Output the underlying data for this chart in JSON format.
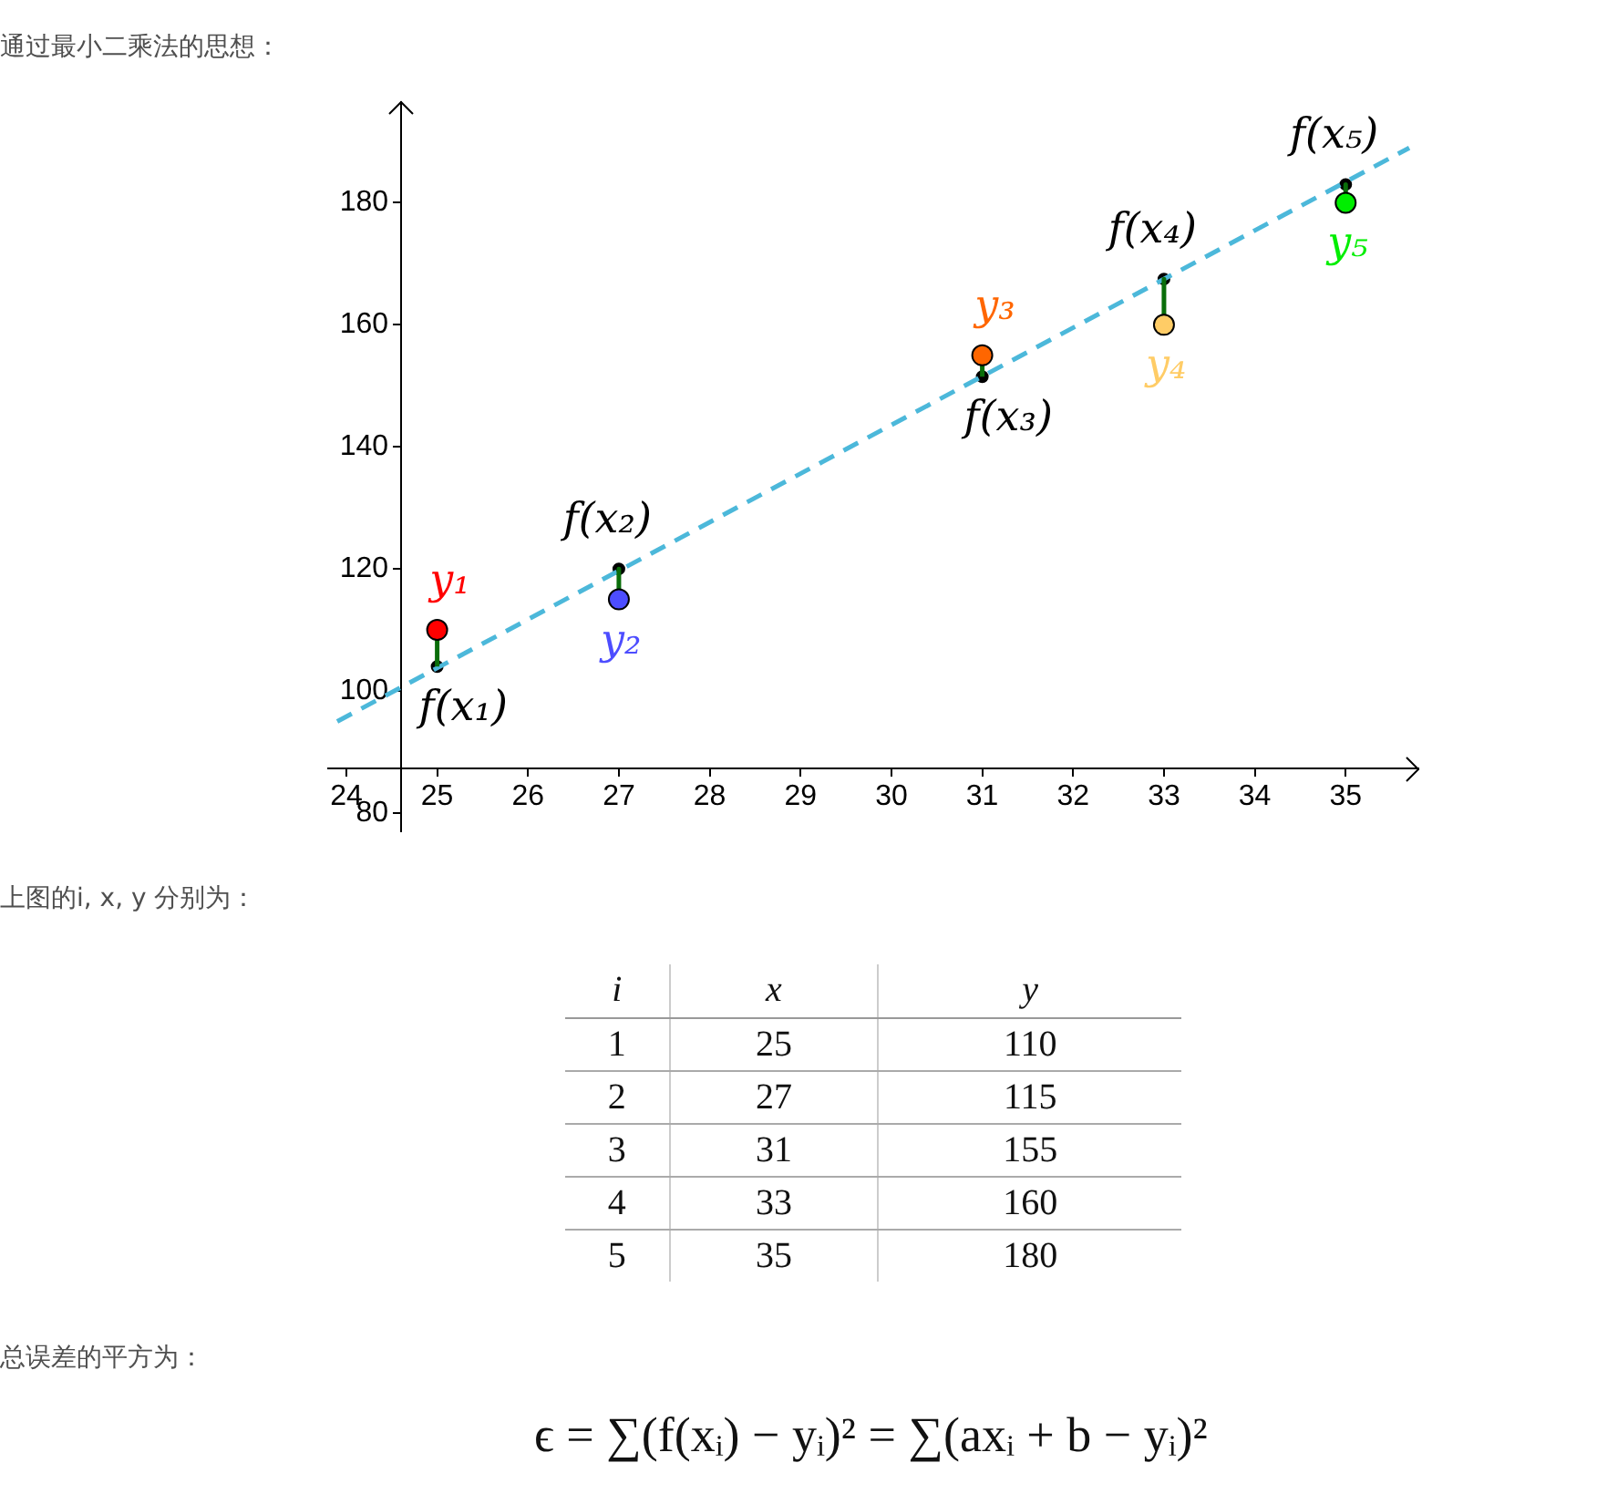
{
  "chart_data": {
    "type": "scatter",
    "title": "通过最小二乘法的思想：",
    "xlim": [
      23.8,
      35.8
    ],
    "ylim": [
      77,
      196.5
    ],
    "xticks": [
      24,
      25,
      26,
      27,
      28,
      29,
      30,
      31,
      32,
      33,
      34,
      35
    ],
    "yticks": [
      80,
      100,
      120,
      140,
      160,
      180
    ],
    "series": [
      {
        "color": "#000000",
        "marker": "circle",
        "x": [
          25,
          27,
          31,
          33,
          35
        ],
        "values": [
          104,
          120,
          151.5,
          167.5,
          183
        ]
      },
      {
        "type": "line",
        "color": "#4cb8da",
        "line_style": "dashed",
        "x": [
          23.9,
          35.7
        ],
        "values": [
          95,
          189
        ]
      },
      {
        "type": "line",
        "color": "#0a6e0a",
        "x": [
          25,
          25
        ],
        "values": [
          104,
          110
        ]
      },
      {
        "type": "line",
        "color": "#0a6e0a",
        "x": [
          27,
          27
        ],
        "values": [
          120,
          115
        ]
      },
      {
        "type": "line",
        "color": "#0a6e0a",
        "x": [
          31,
          31
        ],
        "values": [
          151.5,
          155
        ]
      },
      {
        "type": "line",
        "color": "#0a6e0a",
        "x": [
          33,
          33
        ],
        "values": [
          167.5,
          160
        ]
      },
      {
        "type": "line",
        "color": "#0a6e0a",
        "x": [
          35,
          35
        ],
        "values": [
          183,
          180
        ]
      },
      {
        "colors": [
          "#ff0000",
          "#4d4dff",
          "#ff6600",
          "#ffcc66",
          "#00ee00"
        ],
        "marker": "circle",
        "x": [
          25,
          27,
          31,
          33,
          35
        ],
        "values": [
          110,
          115,
          155,
          160,
          180
        ]
      }
    ],
    "annotations": [
      {
        "text": "y₁",
        "x": 25,
        "y": 110
      },
      {
        "text": "y₂",
        "x": 27,
        "y": 115
      },
      {
        "text": "y₃",
        "x": 31,
        "y": 155
      },
      {
        "text": "y₄",
        "x": 33,
        "y": 160
      },
      {
        "text": "y₅",
        "x": 35,
        "y": 180
      },
      {
        "text": "f(x₁)",
        "x": 25,
        "y": 104
      },
      {
        "text": "f(x₂)",
        "x": 27,
        "y": 120
      },
      {
        "text": "f(x₃)",
        "x": 31,
        "y": 151.5
      },
      {
        "text": "f(x₄)",
        "x": 33,
        "y": 167.5
      },
      {
        "text": "f(x₅)",
        "x": 35,
        "y": 183
      },
      "上图的i, x, y 分别为：",
      "i",
      "x",
      "y",
      "1",
      "25",
      "110",
      "2",
      "27",
      "115",
      "3",
      "31",
      "155",
      "4",
      "33",
      "160",
      "5",
      "35",
      "180",
      "总误差的平方为：",
      "ϵ = ∑(f(xᵢ) − yᵢ)² = ∑(axᵢ + b − yᵢ)²"
    ]
  }
}
